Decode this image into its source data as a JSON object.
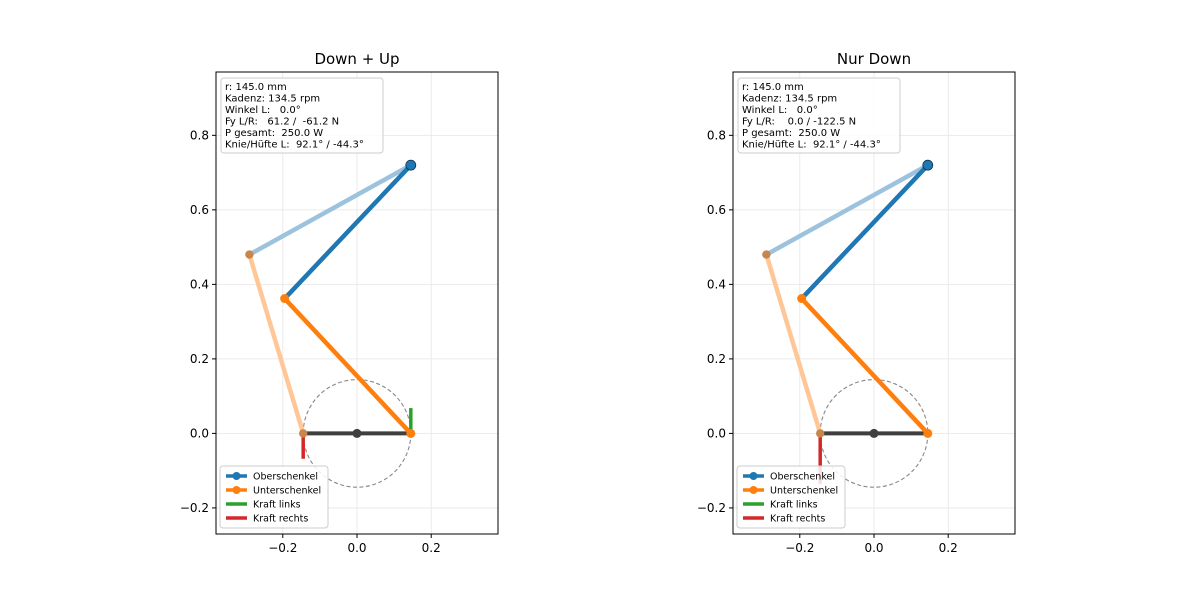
{
  "chart_data": [
    {
      "type": "line",
      "title": "Down + Up",
      "xlim": [
        -0.38,
        0.38
      ],
      "ylim": [
        -0.27,
        0.97
      ],
      "xticks": [
        -0.2,
        0.0,
        0.2
      ],
      "xtick_labels": [
        "−0.2",
        "0.0",
        "0.2"
      ],
      "yticks": [
        -0.2,
        0.0,
        0.2,
        0.4,
        0.6,
        0.8
      ],
      "ytick_labels": [
        "−0.2",
        "0.0",
        "0.2",
        "0.4",
        "0.6",
        "0.8"
      ],
      "grid": true,
      "info_lines": [
        "r: 145.0 mm",
        "Kadenz: 134.5 rpm",
        "Winkel L:   0.0°",
        "Fy L/R:   61.2 /  -61.2 N",
        "P gesamt:  250.0 W",
        "Knie/Hüfte L:  92.1° / -44.3°"
      ],
      "legend_position": "lower-left",
      "legend": [
        {
          "label": "Oberschenkel",
          "color": "#1f77b4",
          "marker": true
        },
        {
          "label": "Unterschenkel",
          "color": "#ff7f0e",
          "marker": true
        },
        {
          "label": "Kraft links",
          "color": "#2ca02c",
          "marker": false
        },
        {
          "label": "Kraft rechts",
          "color": "#d62728",
          "marker": false
        }
      ],
      "hip": [
        0.145,
        0.72
      ],
      "knee_left": [
        -0.195,
        0.362
      ],
      "foot_left": [
        0.145,
        0.0
      ],
      "knee_right": [
        -0.29,
        0.48
      ],
      "foot_right": [
        -0.145,
        0.0
      ],
      "crank_center": [
        0.0,
        0.0
      ],
      "crank_radius": 0.145,
      "force_left": {
        "x": 0.145,
        "y0": 0.0,
        "y1": 0.068
      },
      "force_right": {
        "x": -0.145,
        "y0": 0.0,
        "y1": -0.068
      }
    },
    {
      "type": "line",
      "title": "Nur Down",
      "xlim": [
        -0.38,
        0.38
      ],
      "ylim": [
        -0.27,
        0.97
      ],
      "xticks": [
        -0.2,
        0.0,
        0.2
      ],
      "xtick_labels": [
        "−0.2",
        "0.0",
        "0.2"
      ],
      "yticks": [
        -0.2,
        0.0,
        0.2,
        0.4,
        0.6,
        0.8
      ],
      "ytick_labels": [
        "−0.2",
        "0.0",
        "0.2",
        "0.4",
        "0.6",
        "0.8"
      ],
      "grid": true,
      "info_lines": [
        "r: 145.0 mm",
        "Kadenz: 134.5 rpm",
        "Winkel L:   0.0°",
        "Fy L/R:    0.0 / -122.5 N",
        "P gesamt:  250.0 W",
        "Knie/Hüfte L:  92.1° / -44.3°"
      ],
      "legend_position": "lower-left",
      "legend": [
        {
          "label": "Oberschenkel",
          "color": "#1f77b4",
          "marker": true
        },
        {
          "label": "Unterschenkel",
          "color": "#ff7f0e",
          "marker": true
        },
        {
          "label": "Kraft links",
          "color": "#2ca02c",
          "marker": false
        },
        {
          "label": "Kraft rechts",
          "color": "#d62728",
          "marker": false
        }
      ],
      "hip": [
        0.145,
        0.72
      ],
      "knee_left": [
        -0.195,
        0.362
      ],
      "foot_left": [
        0.145,
        0.0
      ],
      "knee_right": [
        -0.29,
        0.48
      ],
      "foot_right": [
        -0.145,
        0.0
      ],
      "crank_center": [
        0.0,
        0.0
      ],
      "crank_radius": 0.145,
      "force_left": {
        "x": 0.145,
        "y0": 0.0,
        "y1": 0.0
      },
      "force_right": {
        "x": -0.145,
        "y0": 0.0,
        "y1": -0.136
      }
    }
  ],
  "colors": {
    "thigh": "#1f77b4",
    "thigh_light": "#9cc2de",
    "shin": "#ff7f0e",
    "shin_light": "#ffc797",
    "knee_right_marker": "#c8864a",
    "crank": "#3f3f3f",
    "force_left": "#2ca02c",
    "force_right": "#d62728",
    "crank_circle": "#888888",
    "grid": "#e6e6e6"
  }
}
